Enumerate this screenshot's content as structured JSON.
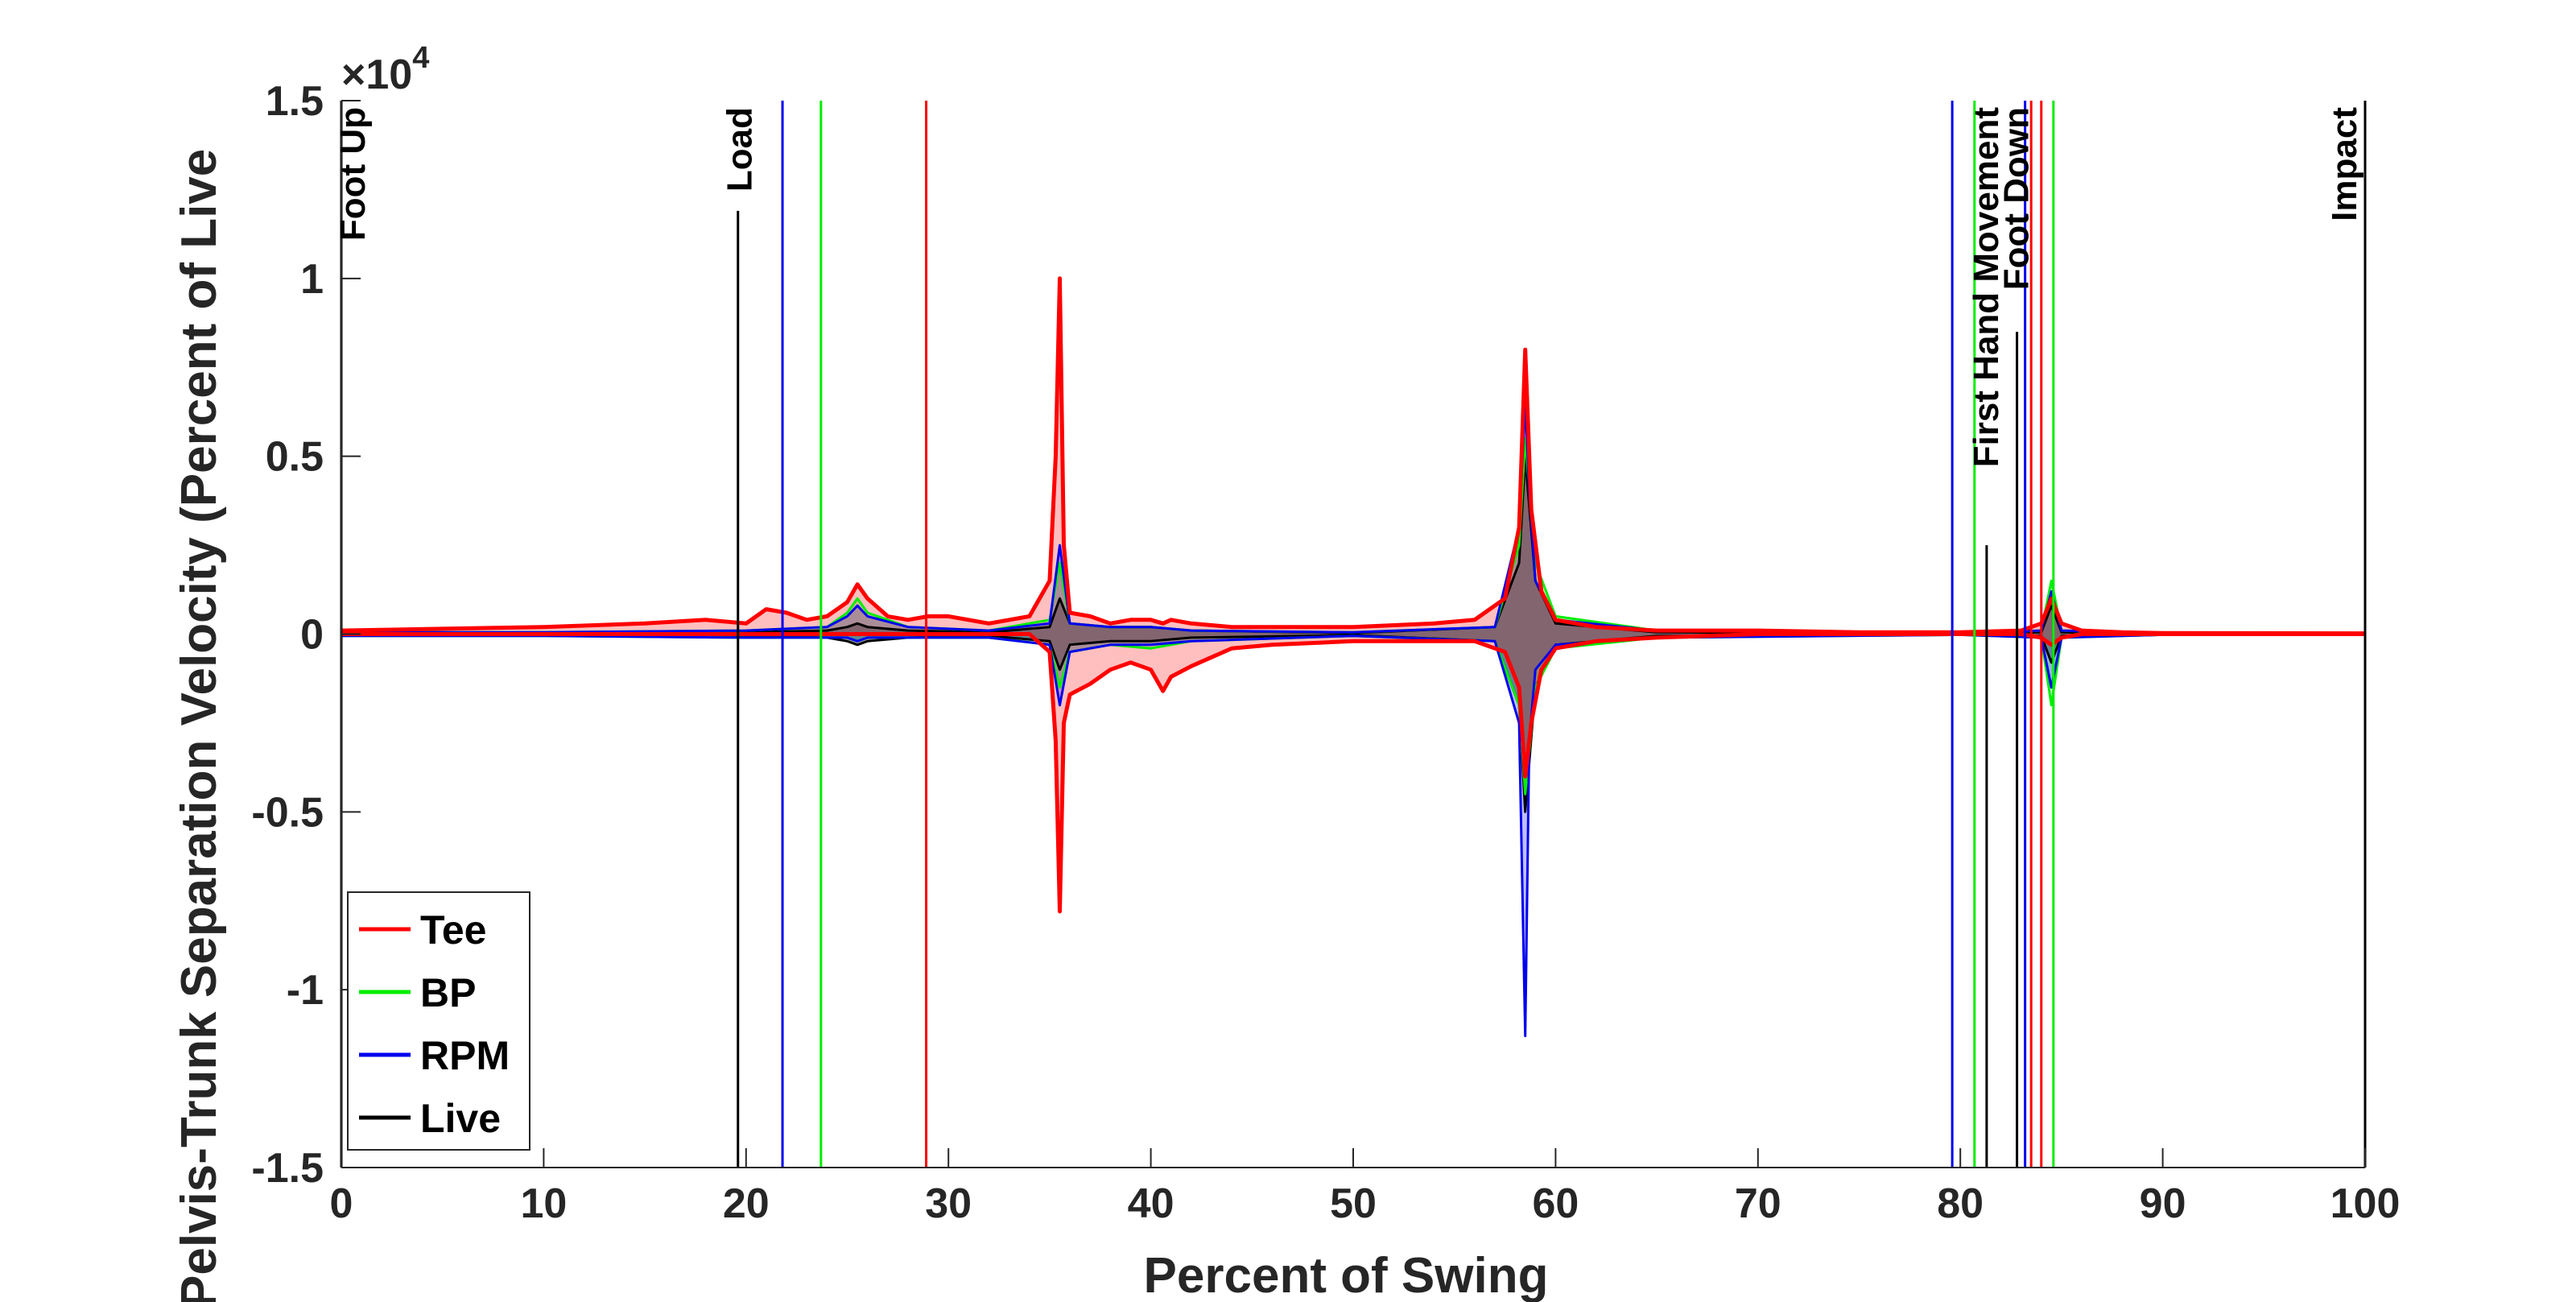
{
  "chart_data": {
    "type": "line",
    "title": "",
    "xlabel": "Percent of Swing",
    "ylabel": "Pelvis-Trunk Separation Velocity (Percent of Live",
    "y_exponent_label": "×10",
    "y_exponent_power": "4",
    "xlim": [
      0,
      100
    ],
    "ylim": [
      -1.5,
      1.5
    ],
    "x_ticks": [
      0,
      10,
      20,
      30,
      40,
      50,
      60,
      70,
      80,
      90,
      100
    ],
    "x_tick_labels": [
      "0",
      "10",
      "20",
      "30",
      "40",
      "50",
      "60",
      "70",
      "80",
      "90",
      "100"
    ],
    "y_ticks": [
      1.5,
      1,
      0.5,
      0,
      -0.5,
      -1,
      -1.5
    ],
    "y_tick_labels": [
      "1.5",
      "1",
      "0.5",
      "0",
      "-0.5",
      "-1",
      "-1.5"
    ],
    "y_scale_note": "values in units of 1e4",
    "grid": false,
    "legend_position": "bottom-left",
    "series": [
      {
        "name": "Tee",
        "color": "#ff0000",
        "x": [
          0,
          5,
          10,
          15,
          18,
          20,
          21,
          22,
          23,
          24,
          25,
          25.5,
          26,
          27,
          28,
          29,
          30,
          32,
          34,
          35,
          35.3,
          35.5,
          35.7,
          36,
          37,
          38,
          39,
          40,
          40.6,
          41,
          42,
          44,
          46,
          50,
          54,
          56,
          57.5,
          58.2,
          58.5,
          58.8,
          59.3,
          60,
          62,
          65,
          70,
          75,
          80,
          83,
          84,
          84.5,
          85,
          86,
          88,
          90,
          100
        ],
        "upper": [
          0.01,
          0.015,
          0.02,
          0.03,
          0.04,
          0.03,
          0.07,
          0.06,
          0.04,
          0.05,
          0.09,
          0.14,
          0.1,
          0.05,
          0.04,
          0.05,
          0.05,
          0.03,
          0.05,
          0.15,
          0.5,
          1.0,
          0.25,
          0.06,
          0.05,
          0.03,
          0.04,
          0.04,
          0.03,
          0.04,
          0.03,
          0.02,
          0.02,
          0.02,
          0.03,
          0.04,
          0.1,
          0.3,
          0.8,
          0.35,
          0.12,
          0.04,
          0.02,
          0.01,
          0.01,
          0.005,
          0.005,
          0.01,
          0.03,
          0.1,
          0.03,
          0.01,
          0.005,
          0.003,
          0.002
        ],
        "lower": [
          0.0,
          0.0,
          0.0,
          0.0,
          0.0,
          0.0,
          0.0,
          0.0,
          0.0,
          0.0,
          0.0,
          0.0,
          0.0,
          0.0,
          0.0,
          0.0,
          0.0,
          0.0,
          0.0,
          -0.05,
          -0.3,
          -0.78,
          -0.25,
          -0.17,
          -0.14,
          -0.1,
          -0.08,
          -0.1,
          -0.16,
          -0.12,
          -0.09,
          -0.04,
          -0.03,
          -0.02,
          -0.02,
          -0.02,
          -0.05,
          -0.15,
          -0.4,
          -0.25,
          -0.1,
          -0.04,
          -0.02,
          -0.01,
          0.0,
          0.0,
          0.0,
          0.0,
          -0.01,
          -0.03,
          -0.01,
          0.0,
          0.0,
          0.0,
          0.0
        ]
      },
      {
        "name": "BP",
        "color": "#00ee00",
        "x": [
          0,
          10,
          20,
          24,
          25,
          25.5,
          26,
          28,
          32,
          35,
          35.5,
          36,
          38,
          40,
          42,
          50,
          57,
          58.2,
          58.5,
          59,
          60,
          65,
          80,
          84,
          84.5,
          85,
          90,
          100
        ],
        "upper": [
          0.005,
          0.005,
          0.01,
          0.02,
          0.06,
          0.1,
          0.06,
          0.02,
          0.01,
          0.04,
          0.2,
          0.03,
          0.02,
          0.02,
          0.01,
          0.005,
          0.02,
          0.25,
          0.55,
          0.2,
          0.05,
          0.01,
          0.002,
          0.01,
          0.15,
          0.01,
          0.002,
          0.001
        ],
        "lower": [
          -0.005,
          -0.005,
          -0.01,
          -0.01,
          -0.01,
          -0.02,
          -0.01,
          -0.01,
          -0.01,
          -0.03,
          -0.15,
          -0.05,
          -0.03,
          -0.04,
          -0.02,
          -0.005,
          -0.02,
          -0.2,
          -0.45,
          -0.15,
          -0.04,
          -0.01,
          -0.002,
          -0.01,
          -0.2,
          -0.01,
          -0.002,
          -0.001
        ]
      },
      {
        "name": "RPM",
        "color": "#0000ee",
        "x": [
          0,
          10,
          20,
          24,
          25,
          25.5,
          26,
          28,
          32,
          35,
          35.5,
          36,
          38,
          40,
          42,
          50,
          57,
          58.2,
          58.5,
          58.7,
          59,
          60,
          65,
          80,
          84,
          84.5,
          85,
          90,
          100
        ],
        "upper": [
          0.005,
          0.005,
          0.01,
          0.02,
          0.05,
          0.08,
          0.05,
          0.02,
          0.01,
          0.03,
          0.25,
          0.03,
          0.02,
          0.02,
          0.01,
          0.005,
          0.02,
          0.3,
          0.65,
          0.4,
          0.15,
          0.04,
          0.01,
          0.002,
          0.01,
          0.12,
          0.01,
          0.002,
          0.001
        ],
        "lower": [
          -0.005,
          -0.005,
          -0.01,
          -0.01,
          -0.01,
          -0.02,
          -0.01,
          -0.01,
          -0.01,
          -0.03,
          -0.2,
          -0.05,
          -0.03,
          -0.03,
          -0.02,
          -0.005,
          -0.02,
          -0.25,
          -1.13,
          -0.3,
          -0.1,
          -0.03,
          -0.01,
          -0.002,
          -0.01,
          -0.15,
          -0.01,
          -0.002,
          -0.001
        ]
      },
      {
        "name": "Live",
        "color": "#000000",
        "x": [
          0,
          10,
          20,
          24,
          25,
          25.5,
          26,
          28,
          32,
          35,
          35.5,
          36,
          38,
          40,
          42,
          50,
          57,
          58.2,
          58.5,
          59,
          60,
          65,
          80,
          84,
          84.5,
          85,
          90,
          100
        ],
        "upper": [
          0.003,
          0.003,
          0.005,
          0.01,
          0.02,
          0.03,
          0.02,
          0.01,
          0.005,
          0.02,
          0.1,
          0.03,
          0.02,
          0.02,
          0.01,
          0.003,
          0.02,
          0.2,
          0.5,
          0.15,
          0.03,
          0.005,
          0.001,
          0.005,
          0.08,
          0.005,
          0.001,
          0.001
        ],
        "lower": [
          -0.003,
          -0.003,
          -0.005,
          -0.01,
          -0.02,
          -0.03,
          -0.02,
          -0.01,
          -0.005,
          -0.02,
          -0.1,
          -0.03,
          -0.02,
          -0.02,
          -0.01,
          -0.003,
          -0.02,
          -0.2,
          -0.5,
          -0.15,
          -0.03,
          -0.005,
          -0.001,
          -0.005,
          -0.08,
          -0.005,
          -0.001,
          -0.001
        ]
      }
    ],
    "event_lines": [
      {
        "series": "Live",
        "color": "#000000",
        "x": 0,
        "y_top": 1.5
      },
      {
        "series": "Live",
        "color": "#000000",
        "x": 19.6,
        "y_top": 1.19
      },
      {
        "series": "RPM",
        "color": "#0000ee",
        "x": 21.8,
        "y_top": 1.5
      },
      {
        "series": "BP",
        "color": "#00ee00",
        "x": 23.7,
        "y_top": 1.5
      },
      {
        "series": "Tee",
        "color": "#ff0000",
        "x": 28.9,
        "y_top": 1.5
      },
      {
        "series": "RPM",
        "color": "#0000ee",
        "x": 79.6,
        "y_top": 1.5
      },
      {
        "series": "BP",
        "color": "#00ee00",
        "x": 80.7,
        "y_top": 1.5
      },
      {
        "series": "Live",
        "color": "#000000",
        "x": 81.3,
        "y_top": 0.25
      },
      {
        "series": "Live",
        "color": "#000000",
        "x": 82.8,
        "y_top": 0.85
      },
      {
        "series": "RPM",
        "color": "#0000ee",
        "x": 83.2,
        "y_top": 1.5
      },
      {
        "series": "Tee",
        "color": "#ff0000",
        "x": 83.5,
        "y_top": 1.5
      },
      {
        "series": "Tee",
        "color": "#ff0000",
        "x": 84.0,
        "y_top": 1.5
      },
      {
        "series": "BP",
        "color": "#00ee00",
        "x": 84.6,
        "y_top": 1.5
      },
      {
        "series": "Live",
        "color": "#000000",
        "x": 100,
        "y_top": 1.5
      }
    ],
    "event_labels": [
      {
        "text": "Foot Up",
        "x": 0.6,
        "y": 1.5
      },
      {
        "text": "Load",
        "x": 19.7,
        "y": 1.5
      },
      {
        "text": "First Hand Movement",
        "x": 81.3,
        "y": 1.5
      },
      {
        "text": "Foot Down",
        "x": 82.8,
        "y": 1.5
      },
      {
        "text": "Impact",
        "x": 99.0,
        "y": 1.5
      }
    ]
  }
}
